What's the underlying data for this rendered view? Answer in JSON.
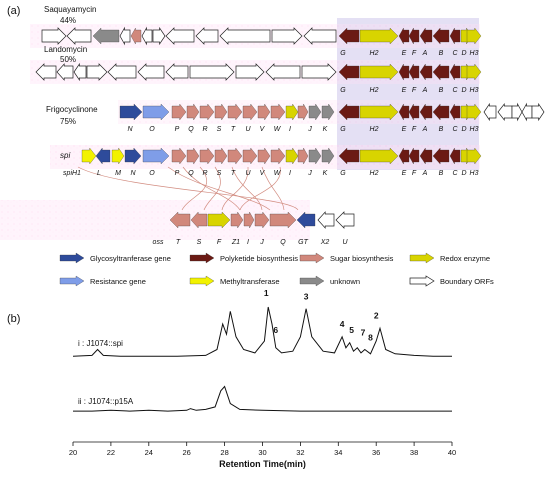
{
  "panel_a": {
    "label": "(a)",
    "clusters": [
      {
        "name": "Saquayamycin",
        "identity": "44%",
        "gene_labels": [
          "G",
          "H2",
          "E",
          "F",
          "A",
          "B",
          "C",
          "D",
          "H3"
        ]
      },
      {
        "name": "Landomycin",
        "identity": "50%",
        "gene_labels": [
          "G",
          "H2",
          "E",
          "F",
          "A",
          "B",
          "C",
          "D",
          "H3"
        ]
      },
      {
        "name": "Frigocyclinone",
        "identity": "75%",
        "gene_labels": [
          "N",
          "O",
          "P",
          "Q",
          "R",
          "S",
          "T",
          "U",
          "V",
          "W",
          "I",
          "J",
          "K",
          "G",
          "H2",
          "E",
          "F",
          "A",
          "B",
          "C",
          "D",
          "H3"
        ]
      },
      {
        "name": "spi",
        "identity": "",
        "gene_labels": [
          "spiH1",
          "L",
          "M",
          "N",
          "O",
          "P",
          "Q",
          "R",
          "S",
          "T",
          "U",
          "V",
          "W",
          "I",
          "J",
          "K",
          "G",
          "H2",
          "E",
          "F",
          "A",
          "B",
          "C",
          "D",
          "H3"
        ]
      },
      {
        "name": "",
        "identity": "",
        "gene_labels": [
          "oss",
          "T",
          "S",
          "F",
          "Z1",
          "I",
          "J",
          "Q",
          "GT",
          "X2",
          "U"
        ]
      }
    ],
    "legend": [
      {
        "label": "Glycosyltranferase gene",
        "color": "#2e4b9b",
        "shape": "arrow"
      },
      {
        "label": "Polyketide biosynthesis",
        "color": "#6b1a14",
        "shape": "arrow"
      },
      {
        "label": "Sugar biosynthesis",
        "color": "#d1887c",
        "shape": "arrow"
      },
      {
        "label": "Redox enzyme",
        "color": "#d8d400",
        "shape": "arrow"
      },
      {
        "label": "Resistance gene",
        "color": "#7f9de8",
        "shape": "arrow"
      },
      {
        "label": "Methyltransferase",
        "color": "#f2f200",
        "shape": "arrow"
      },
      {
        "label": "unknown",
        "color": "#8a8a8a",
        "shape": "arrow"
      },
      {
        "label": "Boundary ORFs",
        "color": "#ffffff",
        "shape": "outline-arrow"
      }
    ]
  },
  "panel_b": {
    "label": "(b)",
    "traces": [
      {
        "name": "i : J1074::spi"
      },
      {
        "name": "ii : J1074::p15A"
      }
    ],
    "peak_labels": [
      "1",
      "2",
      "3",
      "4",
      "5",
      "6",
      "7",
      "8"
    ],
    "xaxis": {
      "label": "Retention Time(min)",
      "ticks": [
        "20",
        "22",
        "24",
        "26",
        "28",
        "30",
        "32",
        "34",
        "36",
        "38",
        "40"
      ]
    }
  },
  "chart_data": {
    "type": "line",
    "xlabel": "Retention Time(min)",
    "xlim": [
      20,
      40
    ],
    "series": [
      {
        "name": "i : J1074::spi",
        "x": [
          20.0,
          21.0,
          21.3,
          21.6,
          22.5,
          24.0,
          25.5,
          27.0,
          27.6,
          27.9,
          28.1,
          28.3,
          28.6,
          29.0,
          29.6,
          30.1,
          30.3,
          30.5,
          30.7,
          31.0,
          31.6,
          32.0,
          32.3,
          32.6,
          33.2,
          33.8,
          34.2,
          34.4,
          34.6,
          34.8,
          35.0,
          35.2,
          35.4,
          35.7,
          36.0,
          36.2,
          36.5,
          37.0,
          38.0,
          39.0,
          40.0
        ],
        "y": [
          0.02,
          0.03,
          0.1,
          0.03,
          0.02,
          0.02,
          0.02,
          0.03,
          0.1,
          0.4,
          0.28,
          0.55,
          0.25,
          0.1,
          0.06,
          0.2,
          0.6,
          0.4,
          0.12,
          0.06,
          0.08,
          0.25,
          0.58,
          0.25,
          0.08,
          0.06,
          0.25,
          0.12,
          0.18,
          0.08,
          0.12,
          0.06,
          0.1,
          0.05,
          0.2,
          0.35,
          0.1,
          0.05,
          0.03,
          0.02,
          0.02
        ]
      },
      {
        "name": "ii : J1074::p15A",
        "x": [
          20.0,
          21.0,
          22.0,
          23.0,
          24.0,
          25.0,
          26.0,
          26.2,
          26.5,
          27.0,
          27.5,
          27.8,
          28.0,
          28.3,
          28.8,
          30.0,
          32.0,
          34.0,
          36.0,
          38.0,
          40.0
        ],
        "y": [
          0.01,
          0.01,
          0.02,
          0.01,
          0.02,
          0.01,
          0.02,
          0.04,
          0.02,
          0.03,
          0.06,
          0.25,
          0.3,
          0.1,
          0.03,
          0.02,
          0.01,
          0.01,
          0.01,
          0.01,
          0.01
        ]
      }
    ]
  }
}
